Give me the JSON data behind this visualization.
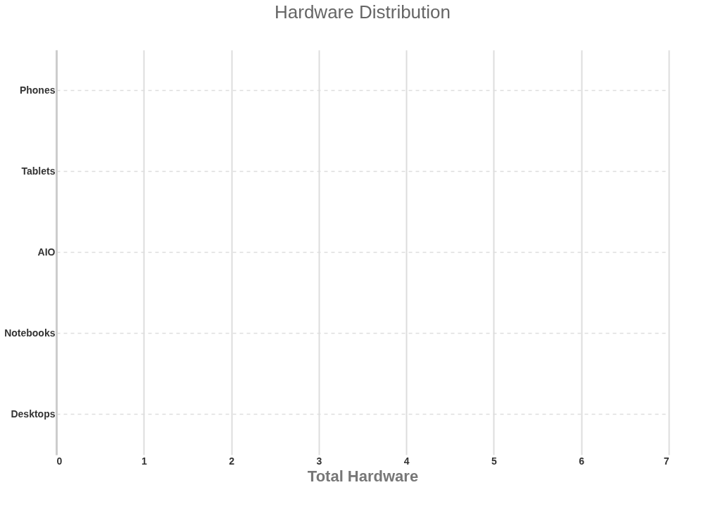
{
  "chart_data": {
    "type": "bar",
    "title": "Hardware Distribution",
    "xlabel": "Total Hardware",
    "orientation": "horizontal",
    "categories": [
      "Phones",
      "Tablets",
      "AIO",
      "Notebooks",
      "Desktops"
    ],
    "values": [
      0,
      0,
      0,
      0,
      0
    ],
    "xlim": [
      0,
      7
    ],
    "xticks": [
      0,
      1,
      2,
      3,
      4,
      5,
      6,
      7
    ],
    "grid": true
  }
}
